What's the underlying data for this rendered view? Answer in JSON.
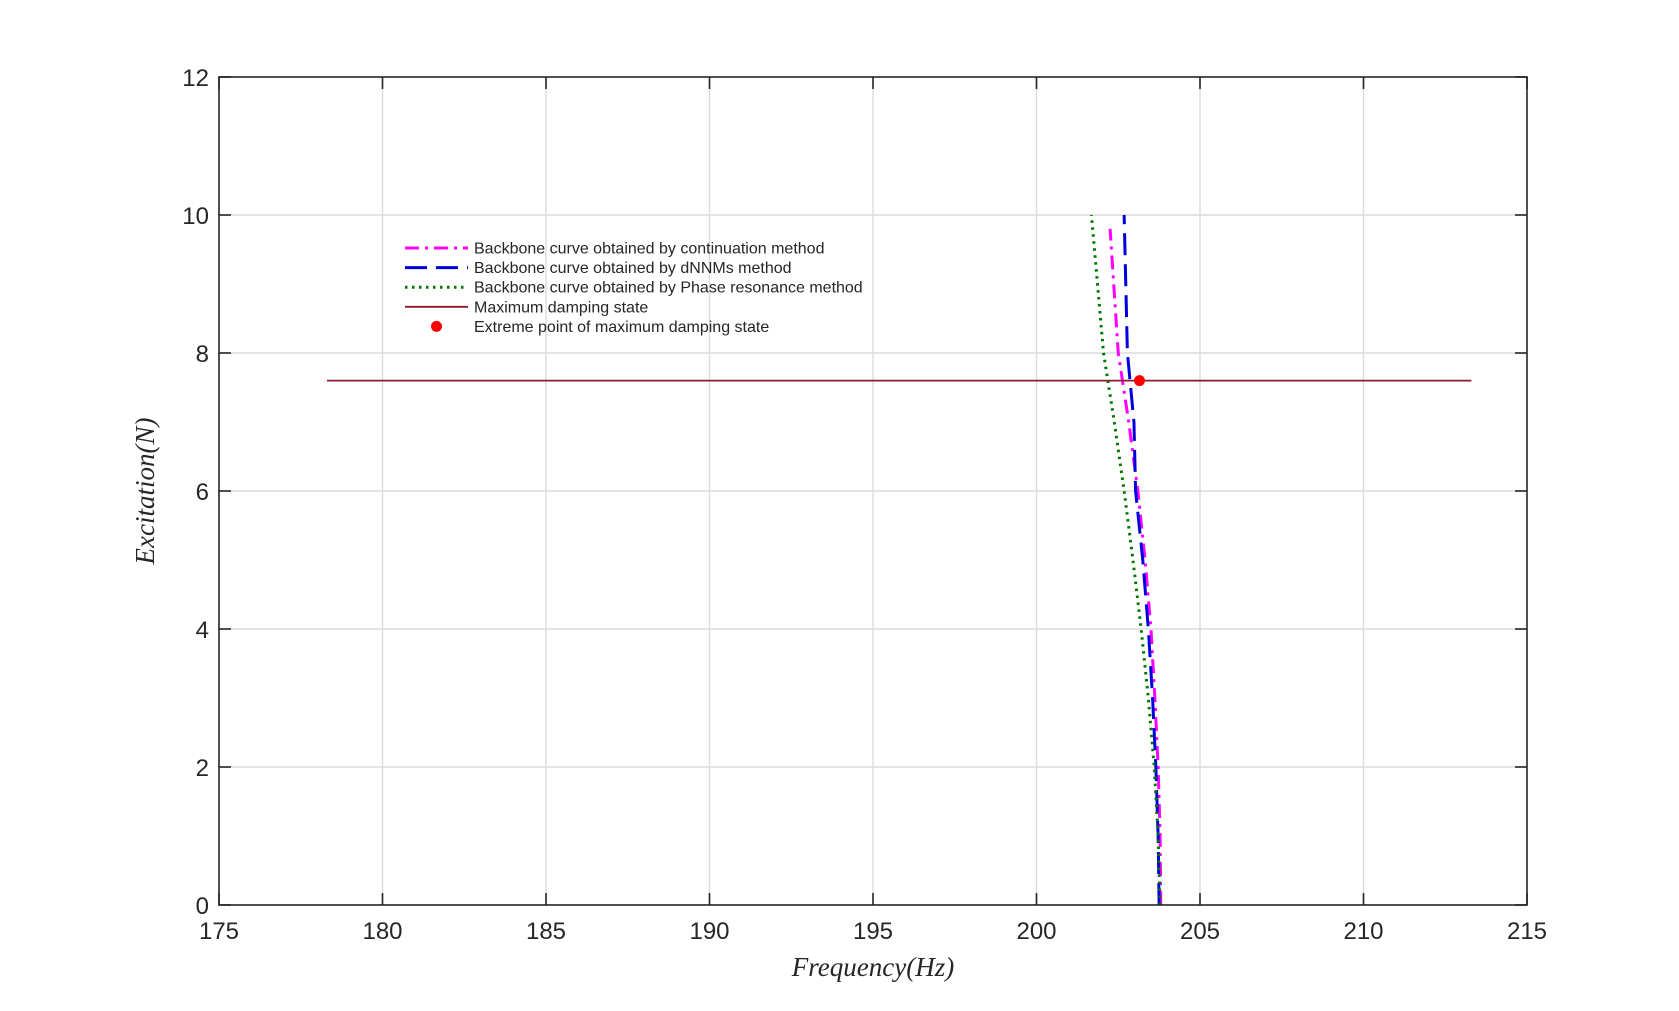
{
  "chart_data": {
    "type": "line",
    "title": "",
    "xlabel": "Frequency(Hz)",
    "ylabel": "Excitation(N)",
    "xlim": [
      175,
      215
    ],
    "ylim": [
      0,
      12
    ],
    "xticks": [
      175,
      180,
      185,
      190,
      195,
      200,
      205,
      210,
      215
    ],
    "yticks": [
      0,
      2,
      4,
      6,
      8,
      10,
      12
    ],
    "xtick_labels": [
      "175",
      "180",
      "185",
      "190",
      "195",
      "200",
      "205",
      "210",
      "215"
    ],
    "ytick_labels": [
      "0",
      "2",
      "4",
      "6",
      "8",
      "10",
      "12"
    ],
    "grid": true,
    "legend_position": "upper-left inside plot",
    "series": [
      {
        "name": "Backbone curve obtained by continuation method",
        "color": "#ff00ff",
        "style": "dash-dot",
        "x": [
          203.8,
          203.78,
          203.72,
          203.62,
          203.5,
          203.32,
          203.1,
          202.82,
          202.5,
          202.25
        ],
        "y": [
          0,
          1,
          2,
          3,
          4,
          5,
          6,
          7,
          8,
          9.8
        ]
      },
      {
        "name": "Backbone curve obtained by dNNMs method",
        "color": "#0000dd",
        "style": "dashed",
        "x": [
          203.75,
          203.72,
          203.65,
          203.55,
          203.42,
          203.25,
          203.03,
          202.98,
          202.78,
          202.68
        ],
        "y": [
          0,
          1,
          2,
          3,
          4,
          5,
          6,
          7,
          8,
          10
        ]
      },
      {
        "name": "Backbone curve obtained by Phase resonance method",
        "color": "#007700",
        "style": "dotted",
        "x": [
          203.78,
          203.72,
          203.6,
          203.42,
          203.2,
          202.95,
          202.68,
          202.38,
          202.05,
          201.68
        ],
        "y": [
          0,
          1,
          2,
          3,
          4,
          5,
          6,
          7,
          8,
          10
        ]
      },
      {
        "name": "Maximum damping state",
        "color": "#8b1a2b",
        "style": "solid",
        "x": [
          178.3,
          213.3
        ],
        "y": [
          7.6,
          7.6
        ]
      }
    ],
    "points": [
      {
        "name": "Extreme point of maximum damping state",
        "color": "#ff0000",
        "x": 203.15,
        "y": 7.6
      }
    ]
  }
}
